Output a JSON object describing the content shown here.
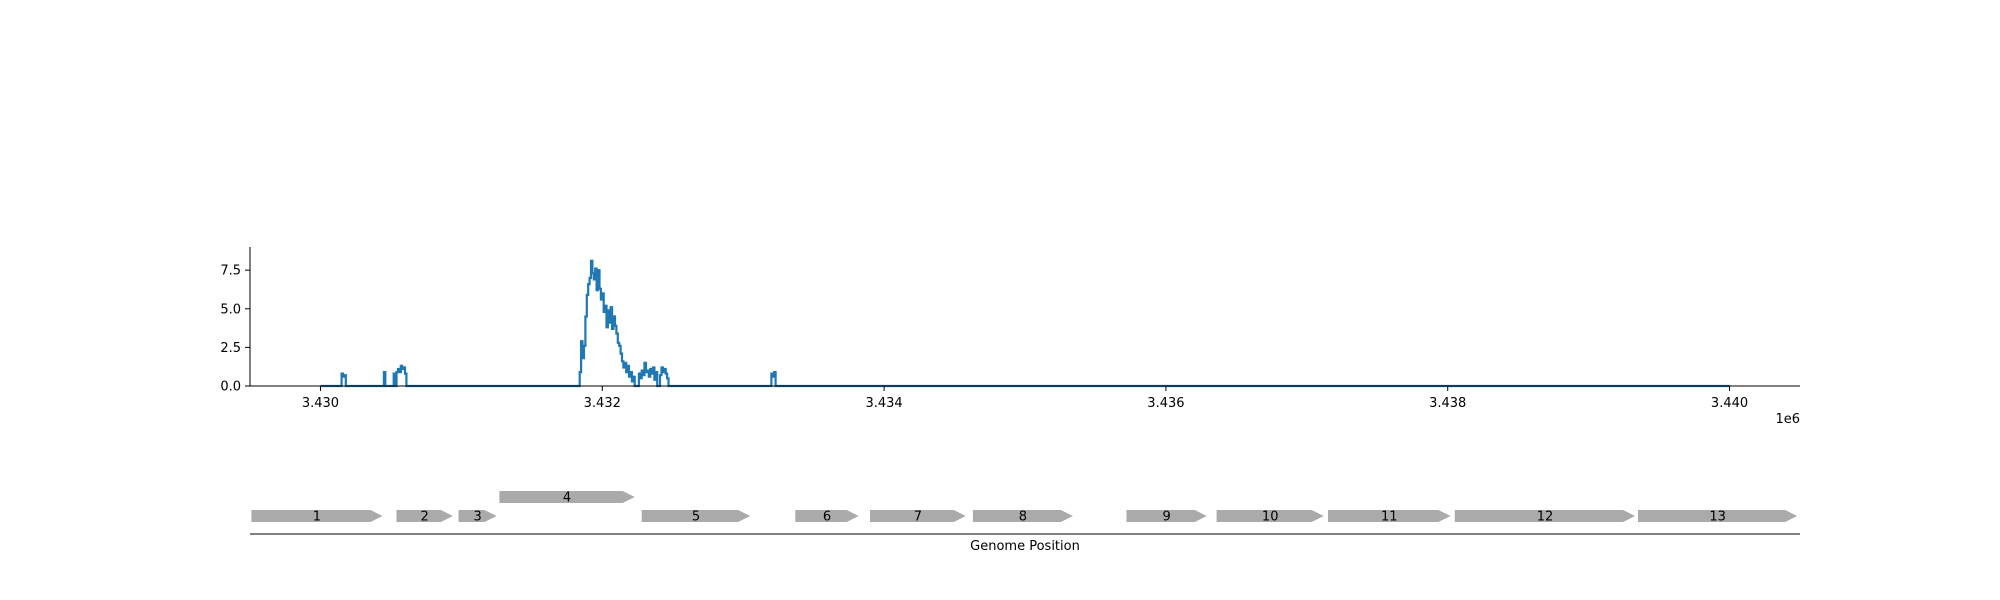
{
  "chart_data": [
    {
      "type": "line",
      "title": "",
      "xlabel": "",
      "ylabel": "",
      "x_offset_label": "1e6",
      "xlim": [
        3429500,
        3440500
      ],
      "ylim": [
        0,
        9.0
      ],
      "x_ticks": [
        3430000,
        3432000,
        3434000,
        3436000,
        3438000,
        3440000
      ],
      "x_tick_labels": [
        "3.430",
        "3.432",
        "3.434",
        "3.436",
        "3.438",
        "3.440"
      ],
      "y_ticks": [
        0,
        2.5,
        5.0,
        7.5
      ],
      "y_tick_labels": [
        "0.0",
        "2.5",
        "5.0",
        "7.5"
      ],
      "grid": false,
      "line_color": "#1f77b4",
      "x_range": [
        3430000,
        3440000
      ],
      "series": [
        {
          "x": [
            3430150,
            3430160,
            3430170,
            3430180,
            3430450,
            3430460,
            3430520,
            3430530,
            3430540,
            3430550,
            3430560,
            3430570,
            3430580,
            3430590,
            3430600,
            3430610,
            3431840,
            3431850,
            3431860,
            3431870,
            3431880,
            3431890,
            3431900,
            3431910,
            3431920,
            3431930,
            3431940,
            3431950,
            3431960,
            3431970,
            3431980,
            3431990,
            3432000,
            3432010,
            3432020,
            3432030,
            3432040,
            3432050,
            3432060,
            3432070,
            3432080,
            3432090,
            3432100,
            3432110,
            3432120,
            3432130,
            3432140,
            3432150,
            3432160,
            3432170,
            3432180,
            3432190,
            3432200,
            3432210,
            3432220,
            3432230,
            3432240,
            3432250,
            3432260,
            3432270,
            3432280,
            3432290,
            3432300,
            3432310,
            3432320,
            3432330,
            3432340,
            3432350,
            3432360,
            3432370,
            3432380,
            3432390,
            3432400,
            3432410,
            3432420,
            3432430,
            3432440,
            3432450,
            3432460,
            3432470,
            3432480,
            3432490,
            3432500,
            3432510,
            3433200,
            3433210,
            3433220,
            3433230
          ],
          "y": [
            0.8,
            0.6,
            0.7,
            0.0,
            0.9,
            0.0,
            0.8,
            0.0,
            0.9,
            1.1,
            0.9,
            1.3,
            1.1,
            1.2,
            0.8,
            0.0,
            0.9,
            2.9,
            1.8,
            2.6,
            4.5,
            5.9,
            6.6,
            7.0,
            8.1,
            7.3,
            6.9,
            7.6,
            6.2,
            7.5,
            6.3,
            5.6,
            6.0,
            4.8,
            5.2,
            3.8,
            4.9,
            4.1,
            5.1,
            3.7,
            4.5,
            3.9,
            3.4,
            2.8,
            2.6,
            2.1,
            1.6,
            1.2,
            1.5,
            0.9,
            1.3,
            0.6,
            0.9,
            0.3,
            0.6,
            0.0,
            0.0,
            0.0,
            0.8,
            0.5,
            1.0,
            0.7,
            1.5,
            0.9,
            1.0,
            0.6,
            1.1,
            0.8,
            1.2,
            0.4,
            0.9,
            0.0,
            0.0,
            0.7,
            1.2,
            0.9,
            1.1,
            0.8,
            0.5,
            0.0,
            0.0,
            0.0,
            0.0,
            0.0,
            0.8,
            0.6,
            0.9,
            0.0
          ]
        }
      ]
    },
    {
      "type": "gene-track",
      "xlabel": "Genome Position",
      "gene_color": "#aaaaaa",
      "genes": [
        {
          "label": "1",
          "start": 3429510,
          "end": 3430440,
          "strand": "+",
          "row": 0
        },
        {
          "label": "2",
          "start": 3430540,
          "end": 3430940,
          "strand": "+",
          "row": 0
        },
        {
          "label": "3",
          "start": 3430980,
          "end": 3431250,
          "strand": "+",
          "row": 0
        },
        {
          "label": "4",
          "start": 3431270,
          "end": 3432230,
          "strand": "+",
          "row": 1
        },
        {
          "label": "5",
          "start": 3432280,
          "end": 3433050,
          "strand": "+",
          "row": 0
        },
        {
          "label": "6",
          "start": 3433370,
          "end": 3433820,
          "strand": "+",
          "row": 0
        },
        {
          "label": "7",
          "start": 3433900,
          "end": 3434580,
          "strand": "+",
          "row": 0
        },
        {
          "label": "8",
          "start": 3434630,
          "end": 3435340,
          "strand": "+",
          "row": 0
        },
        {
          "label": "9",
          "start": 3435720,
          "end": 3436290,
          "strand": "+",
          "row": 0
        },
        {
          "label": "10",
          "start": 3436360,
          "end": 3437120,
          "strand": "+",
          "row": 0
        },
        {
          "label": "11",
          "start": 3437150,
          "end": 3438020,
          "strand": "+",
          "row": 0
        },
        {
          "label": "12",
          "start": 3438050,
          "end": 3439330,
          "strand": "+",
          "row": 0
        },
        {
          "label": "13",
          "start": 3439350,
          "end": 3440480,
          "strand": "+",
          "row": 0
        }
      ]
    }
  ]
}
